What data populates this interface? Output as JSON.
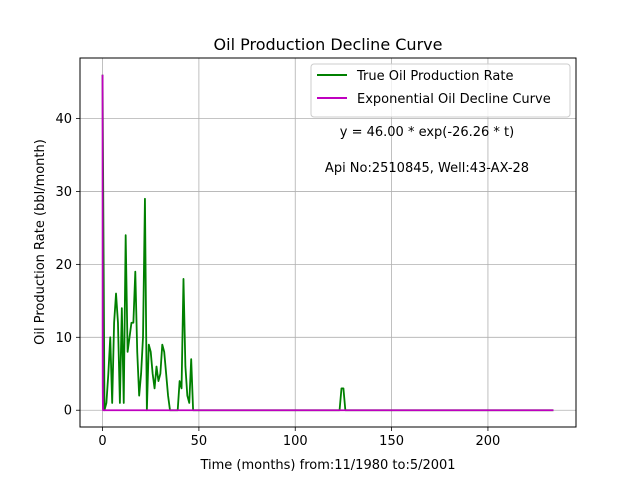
{
  "chart_data": {
    "type": "line",
    "title": "Oil Production Decline Curve",
    "xlabel": "Time (months) from:11/1980 to:5/2001",
    "ylabel": "Oil Production Rate (bbl/month)",
    "xlim": [
      -11.7,
      245.7
    ],
    "ylim": [
      -2.3,
      48.3
    ],
    "xticks": [
      0,
      50,
      100,
      150,
      200
    ],
    "yticks": [
      0,
      10,
      20,
      30,
      40
    ],
    "grid": true,
    "legend_position": "top-right",
    "annotations": [
      {
        "text": "y = 46.00 * exp(-26.26 * t)"
      },
      {
        "text": "Api No:2510845, Well:43-AX-28"
      }
    ],
    "series": [
      {
        "name": "True Oil Production Rate",
        "color": "#008000",
        "points": [
          [
            0,
            46
          ],
          [
            1,
            0
          ],
          [
            2,
            1
          ],
          [
            3,
            5
          ],
          [
            4,
            10
          ],
          [
            5,
            1
          ],
          [
            6,
            12
          ],
          [
            7,
            16
          ],
          [
            8,
            12
          ],
          [
            9,
            1
          ],
          [
            10,
            14
          ],
          [
            11,
            1
          ],
          [
            12,
            24
          ],
          [
            13,
            8
          ],
          [
            14,
            10
          ],
          [
            15,
            12
          ],
          [
            16,
            12
          ],
          [
            17,
            19
          ],
          [
            18,
            8
          ],
          [
            19,
            2
          ],
          [
            20,
            5
          ],
          [
            21,
            10
          ],
          [
            22,
            29
          ],
          [
            23,
            0
          ],
          [
            24,
            9
          ],
          [
            25,
            8
          ],
          [
            26,
            5
          ],
          [
            27,
            3
          ],
          [
            28,
            6
          ],
          [
            29,
            4
          ],
          [
            30,
            5
          ],
          [
            31,
            9
          ],
          [
            32,
            8
          ],
          [
            33,
            5
          ],
          [
            34,
            2
          ],
          [
            35,
            0
          ],
          [
            36,
            0
          ],
          [
            37,
            0
          ],
          [
            38,
            0
          ],
          [
            39,
            0
          ],
          [
            40,
            4
          ],
          [
            41,
            3
          ],
          [
            42,
            18
          ],
          [
            43,
            6
          ],
          [
            44,
            2
          ],
          [
            45,
            1
          ],
          [
            46,
            7
          ],
          [
            47,
            0
          ],
          [
            123,
            0
          ],
          [
            124,
            3
          ],
          [
            125,
            3
          ],
          [
            126,
            0
          ],
          [
            234,
            0
          ]
        ]
      },
      {
        "name": "Exponential Oil Decline Curve",
        "color": "#bf00bf",
        "points": [
          [
            0,
            46
          ],
          [
            0.05,
            12.4
          ],
          [
            0.1,
            3.3
          ],
          [
            0.2,
            0.24
          ],
          [
            0.3,
            0
          ],
          [
            234,
            0
          ]
        ]
      }
    ]
  }
}
